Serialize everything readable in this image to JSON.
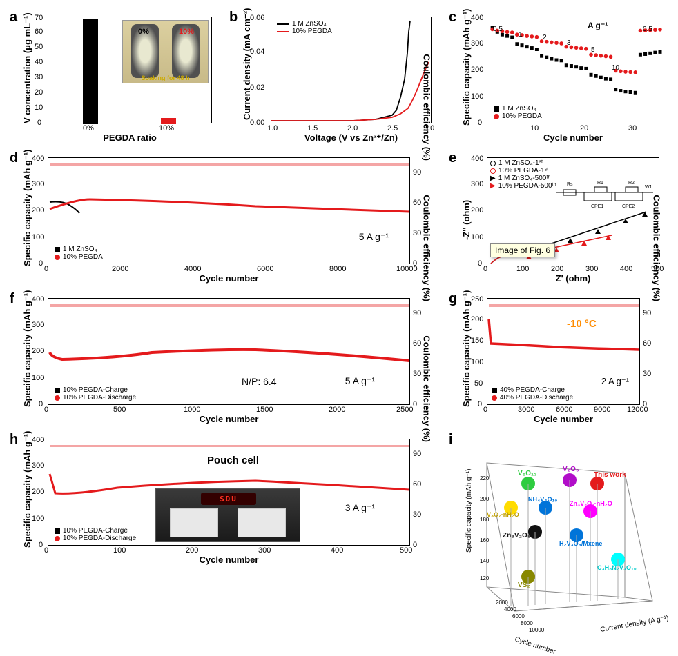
{
  "layout": {
    "row1_y": 10,
    "row1_h": 190,
    "row2_y": 210,
    "row2_h": 190,
    "row3_y": 410,
    "row3_h": 190,
    "row4_y": 610,
    "row4_h": 190,
    "row5_y": 810,
    "row5_h": 130
  },
  "colors": {
    "black": "#000000",
    "red": "#e41a1c",
    "red_light": "#f4a5a5",
    "orange": "#ff8c00",
    "bg": "#ffffff",
    "axis": "#000000",
    "tooltip_bg": "#ffffe1"
  },
  "panel_a": {
    "label": "a",
    "type": "bar",
    "xlabel": "PEGDA ratio",
    "ylabel": "V concentration (μg mL⁻¹)",
    "ylim": [
      0,
      70
    ],
    "ytick_step": 10,
    "categories": [
      "0%",
      "10%"
    ],
    "values": [
      63,
      4
    ],
    "bar_colors": [
      "#000000",
      "#e41a1c"
    ],
    "inset": {
      "description": "photo of two vials",
      "labels": [
        "0%",
        "10%"
      ],
      "caption": "Soaking for 48 h",
      "label_colors": [
        "#000000",
        "#e41a1c"
      ]
    }
  },
  "panel_b": {
    "label": "b",
    "type": "line",
    "xlabel": "Voltage (V vs Zn²⁺/Zn)",
    "ylabel": "Current density (mA cm⁻²)",
    "xlim": [
      1.0,
      3.0
    ],
    "xtick_step": 0.5,
    "ylim": [
      0.0,
      0.06
    ],
    "ytick_step": 0.02,
    "series": [
      {
        "name": "1 M ZnSO₄",
        "color": "#000000",
        "x": [
          1.0,
          1.5,
          2.0,
          2.3,
          2.5,
          2.55,
          2.6,
          2.65,
          2.68,
          2.7,
          2.72
        ],
        "y": [
          0.002,
          0.002,
          0.002,
          0.003,
          0.005,
          0.008,
          0.015,
          0.025,
          0.04,
          0.052,
          0.058
        ]
      },
      {
        "name": "10% PEGDA",
        "color": "#e41a1c",
        "x": [
          1.0,
          1.5,
          2.0,
          2.3,
          2.5,
          2.6,
          2.7,
          2.75,
          2.8,
          2.85,
          2.9,
          2.95
        ],
        "y": [
          0.002,
          0.002,
          0.002,
          0.003,
          0.004,
          0.006,
          0.009,
          0.013,
          0.018,
          0.024,
          0.03,
          0.035
        ]
      }
    ]
  },
  "panel_c": {
    "label": "c",
    "type": "scatter",
    "xlabel": "Cycle number",
    "ylabel": "Specific capacity (mAh g⁻¹)",
    "xlim": [
      0,
      35
    ],
    "xtick_step": 10,
    "ylim": [
      0,
      400
    ],
    "ytick_step": 100,
    "rate_labels": [
      "0.5",
      "1",
      "2",
      "3",
      "5",
      "10",
      "0.5"
    ],
    "rate_unit": "A g⁻¹",
    "series": [
      {
        "name": "1 M ZnSO₄",
        "marker": "square",
        "color": "#000000",
        "x": [
          1,
          2,
          3,
          4,
          5,
          6,
          7,
          8,
          9,
          10,
          11,
          12,
          13,
          14,
          15,
          16,
          17,
          18,
          19,
          20,
          21,
          22,
          23,
          24,
          25,
          26,
          27,
          28,
          29,
          30,
          31,
          32,
          33,
          34,
          35
        ],
        "y": [
          360,
          345,
          335,
          330,
          325,
          300,
          295,
          290,
          285,
          280,
          255,
          250,
          245,
          240,
          238,
          220,
          218,
          215,
          210,
          208,
          185,
          180,
          175,
          170,
          168,
          130,
          125,
          122,
          120,
          118,
          260,
          262,
          265,
          268,
          270
        ]
      },
      {
        "name": "10% PEGDA",
        "marker": "circle",
        "color": "#e41a1c",
        "x": [
          1,
          2,
          3,
          4,
          5,
          6,
          7,
          8,
          9,
          10,
          11,
          12,
          13,
          14,
          15,
          16,
          17,
          18,
          19,
          20,
          21,
          22,
          23,
          24,
          25,
          26,
          27,
          28,
          29,
          30,
          31,
          32,
          33,
          34,
          35
        ],
        "y": [
          355,
          350,
          348,
          345,
          343,
          335,
          333,
          330,
          328,
          326,
          310,
          308,
          306,
          304,
          302,
          290,
          288,
          286,
          284,
          282,
          260,
          258,
          256,
          254,
          252,
          200,
          198,
          196,
          195,
          194,
          350,
          351,
          352,
          353,
          354
        ]
      }
    ]
  },
  "panel_d": {
    "label": "d",
    "type": "scatter",
    "xlabel": "Cycle number",
    "ylabel": "Specific capacity (mAh g⁻¹)",
    "ylabel_right": "Coulombic efficiency (%)",
    "xlim": [
      0,
      10000
    ],
    "xtick_step": 2000,
    "ylim": [
      0,
      400
    ],
    "ytick_step": 100,
    "ylim_right": [
      0,
      105
    ],
    "ytick_step_right": 30,
    "annotation": "5 A g⁻¹",
    "series": [
      {
        "name": "1 M ZnSO₄",
        "marker": "square",
        "color": "#000000",
        "short": true
      },
      {
        "name": "10% PEGDA",
        "marker": "circle",
        "color": "#e41a1c"
      }
    ],
    "capacity_trend": {
      "start_y": 235,
      "peak_y": 245,
      "peak_x": 800,
      "end_y": 198
    },
    "ce_value": 99
  },
  "panel_e": {
    "label": "e",
    "type": "nyquist",
    "xlabel": "Z' (ohm)",
    "ylabel": "-Z'' (ohm)",
    "xlim": [
      0,
      500
    ],
    "xtick_step": 100,
    "ylim": [
      0,
      400
    ],
    "ytick_step": 100,
    "circuit_label": "Rs-CPE1||R1-CPE2||R2-W1",
    "series": [
      {
        "name": "1 M ZnSO₄-1ˢᵗ",
        "marker": "open-circle",
        "color": "#000000"
      },
      {
        "name": "10% PEGDA-1ˢᵗ",
        "marker": "open-circle",
        "color": "#e41a1c"
      },
      {
        "name": "1 M ZnSO₄-500ᵗʰ",
        "marker": "triangle",
        "color": "#000000"
      },
      {
        "name": "10% PEGDA-500ᵗʰ",
        "marker": "triangle",
        "color": "#e41a1c"
      }
    ],
    "tooltip": "Image of Fig. 6"
  },
  "panel_f": {
    "label": "f",
    "type": "scatter",
    "xlabel": "Cycle number",
    "ylabel": "Specific capacity (mAh g⁻¹)",
    "ylabel_right": "Coulombic efficiency (%)",
    "xlim": [
      0,
      2500
    ],
    "xtick_step": 500,
    "ylim": [
      0,
      400
    ],
    "ytick_step": 100,
    "ylim_right": [
      0,
      105
    ],
    "ytick_step_right": 30,
    "annotations": [
      "N/P: 6.4",
      "5 A g⁻¹"
    ],
    "series": [
      {
        "name": "10% PEGDA-Charge",
        "marker": "square",
        "color": "#000000"
      },
      {
        "name": "10% PEGDA-Discharge",
        "marker": "circle",
        "color": "#e41a1c"
      }
    ],
    "capacity_trend": {
      "start_y": 200,
      "mid_y": 210,
      "end_y": 170
    },
    "ce_value": 99
  },
  "panel_g": {
    "label": "g",
    "type": "scatter",
    "xlabel": "Cycle number",
    "ylabel": "Specific capacity (mAh g⁻¹)",
    "ylabel_right": "Coulombic efficiency (%)",
    "xlim": [
      0,
      12000
    ],
    "xtick_step": 3000,
    "ylim": [
      0,
      250
    ],
    "ytick_step": 50,
    "ylim_right": [
      0,
      105
    ],
    "ytick_step_right": 30,
    "temp_annotation": "-10 °C",
    "temp_color": "#ff8c00",
    "rate_annotation": "2 A g⁻¹",
    "series": [
      {
        "name": "40% PEGDA-Charge",
        "marker": "square",
        "color": "#000000"
      },
      {
        "name": "40% PEGDA-Discharge",
        "marker": "circle",
        "color": "#e41a1c"
      }
    ],
    "capacity_trend": {
      "start_y": 200,
      "mid_y": 145,
      "end_y": 130
    },
    "ce_value": 99
  },
  "panel_h": {
    "label": "h",
    "type": "scatter",
    "xlabel": "Cycle number",
    "ylabel": "Specific capacity (mAh g⁻¹)",
    "ylabel_right": "Coulombic efficiency (%)",
    "xlim": [
      0,
      500
    ],
    "xtick_step": 100,
    "ylim": [
      0,
      400
    ],
    "ytick_step": 100,
    "ylim_right": [
      0,
      105
    ],
    "ytick_step_right": 30,
    "title_annotation": "Pouch cell",
    "rate_annotation": "3 A g⁻¹",
    "inset_label": "SDU",
    "series": [
      {
        "name": "10% PEGDA-Charge",
        "marker": "square",
        "color": "#000000"
      },
      {
        "name": "10% PEGDA-Discharge",
        "marker": "circle",
        "color": "#e41a1c"
      }
    ],
    "capacity_trend": {
      "start_y": 270,
      "dip_y": 200,
      "mid_y": 250,
      "end_y": 210
    },
    "ce_value": 99
  },
  "panel_i": {
    "label": "i",
    "type": "3d-scatter",
    "xlabel": "Cycle number",
    "ylabel": "Current density (A g⁻¹)",
    "zlabel": "Specific capacity (mAh g⁻¹)",
    "points": [
      {
        "label": "V₆O₁₃",
        "color": "#2ecc40"
      },
      {
        "label": "V₂O₅",
        "color": "#b10dc9"
      },
      {
        "label": "This work",
        "color": "#e41a1c"
      },
      {
        "label": "V₃O₇·nH₂O",
        "color": "#ffdc00"
      },
      {
        "label": "NH₄V₄O₁₀",
        "color": "#0074d9"
      },
      {
        "label": "Zn₃V₂O₇·nH₂O",
        "color": "#ff00ff"
      },
      {
        "label": "Zn₃V₂O₈",
        "color": "#111111"
      },
      {
        "label": "H₂V₃O₈/Mxene",
        "color": "#0074d9"
      },
      {
        "label": "VS₂",
        "color": "#888800"
      },
      {
        "label": "C₃H₈N₂V₃O₁₀",
        "color": "#00ffff"
      }
    ]
  }
}
